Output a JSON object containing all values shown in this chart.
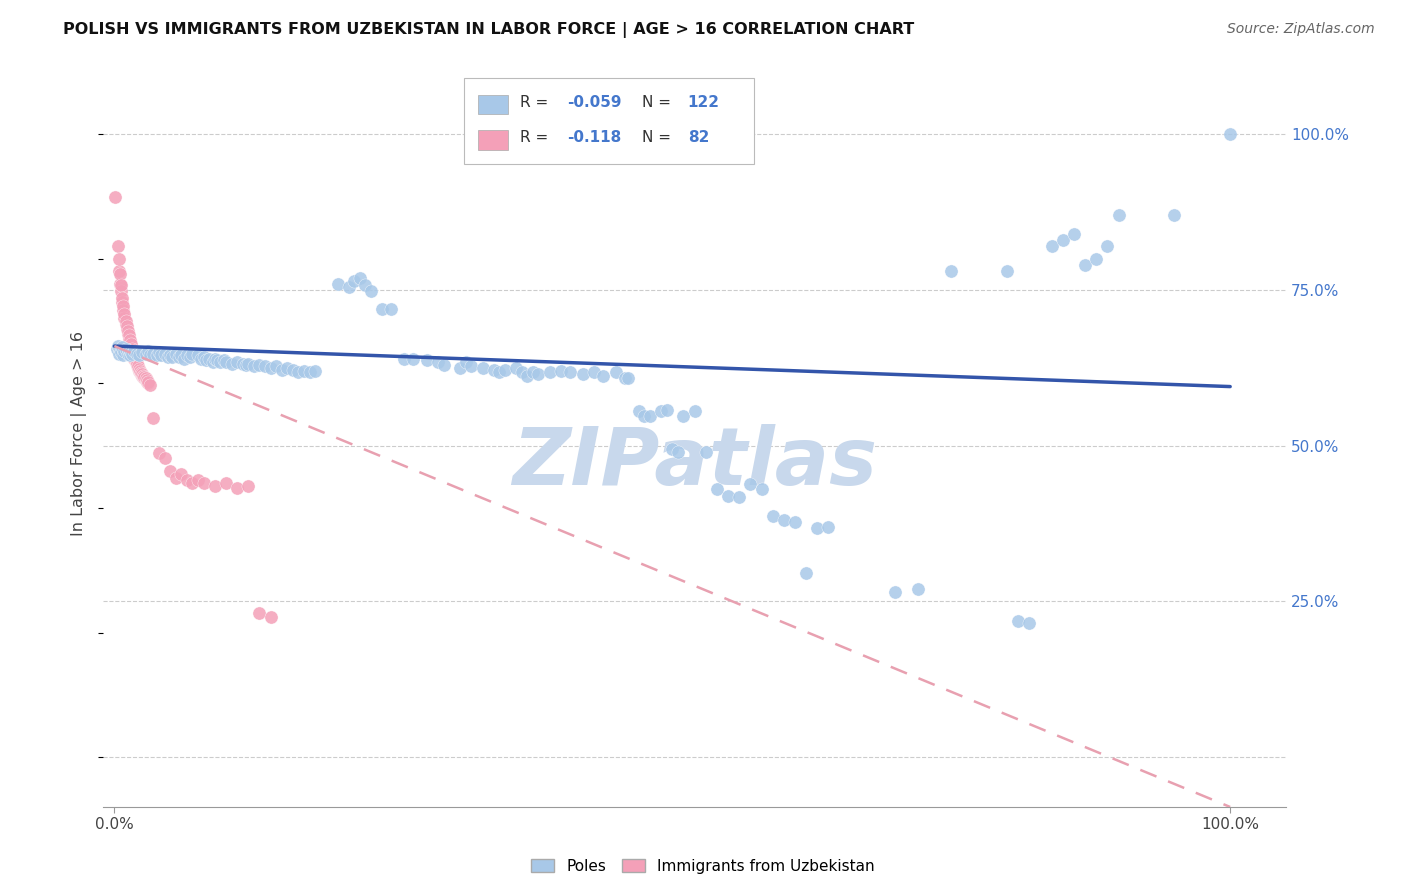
{
  "title": "POLISH VS IMMIGRANTS FROM UZBEKISTAN IN LABOR FORCE | AGE > 16 CORRELATION CHART",
  "source": "Source: ZipAtlas.com",
  "ylabel_label": "In Labor Force | Age > 16",
  "right_yticks": [
    "100.0%",
    "75.0%",
    "50.0%",
    "25.0%"
  ],
  "right_ytick_vals": [
    1.0,
    0.75,
    0.5,
    0.25
  ],
  "blue_color": "#A8C8E8",
  "pink_color": "#F4A0B8",
  "blue_line_color": "#3355AA",
  "pink_line_color": "#E8A0B0",
  "watermark": "ZIPatlas",
  "watermark_color": "#C8D8EC",
  "blue_scatter": [
    [
      0.002,
      0.655
    ],
    [
      0.003,
      0.66
    ],
    [
      0.004,
      0.648
    ],
    [
      0.005,
      0.655
    ],
    [
      0.006,
      0.65
    ],
    [
      0.007,
      0.658
    ],
    [
      0.008,
      0.645
    ],
    [
      0.009,
      0.652
    ],
    [
      0.01,
      0.655
    ],
    [
      0.012,
      0.648
    ],
    [
      0.013,
      0.652
    ],
    [
      0.014,
      0.645
    ],
    [
      0.015,
      0.65
    ],
    [
      0.016,
      0.648
    ],
    [
      0.018,
      0.652
    ],
    [
      0.02,
      0.648
    ],
    [
      0.022,
      0.645
    ],
    [
      0.025,
      0.65
    ],
    [
      0.028,
      0.648
    ],
    [
      0.03,
      0.652
    ],
    [
      0.032,
      0.645
    ],
    [
      0.035,
      0.648
    ],
    [
      0.038,
      0.645
    ],
    [
      0.04,
      0.65
    ],
    [
      0.042,
      0.645
    ],
    [
      0.045,
      0.648
    ],
    [
      0.048,
      0.642
    ],
    [
      0.05,
      0.645
    ],
    [
      0.052,
      0.642
    ],
    [
      0.055,
      0.648
    ],
    [
      0.058,
      0.642
    ],
    [
      0.06,
      0.645
    ],
    [
      0.062,
      0.64
    ],
    [
      0.065,
      0.645
    ],
    [
      0.068,
      0.642
    ],
    [
      0.07,
      0.648
    ],
    [
      0.075,
      0.645
    ],
    [
      0.078,
      0.64
    ],
    [
      0.08,
      0.642
    ],
    [
      0.082,
      0.638
    ],
    [
      0.085,
      0.64
    ],
    [
      0.088,
      0.635
    ],
    [
      0.09,
      0.64
    ],
    [
      0.092,
      0.638
    ],
    [
      0.095,
      0.635
    ],
    [
      0.098,
      0.638
    ],
    [
      0.1,
      0.635
    ],
    [
      0.105,
      0.632
    ],
    [
      0.11,
      0.635
    ],
    [
      0.115,
      0.632
    ],
    [
      0.118,
      0.63
    ],
    [
      0.12,
      0.632
    ],
    [
      0.125,
      0.628
    ],
    [
      0.13,
      0.63
    ],
    [
      0.135,
      0.628
    ],
    [
      0.14,
      0.625
    ],
    [
      0.145,
      0.628
    ],
    [
      0.15,
      0.622
    ],
    [
      0.155,
      0.625
    ],
    [
      0.16,
      0.622
    ],
    [
      0.165,
      0.618
    ],
    [
      0.17,
      0.62
    ],
    [
      0.175,
      0.618
    ],
    [
      0.18,
      0.62
    ],
    [
      0.2,
      0.76
    ],
    [
      0.21,
      0.755
    ],
    [
      0.215,
      0.765
    ],
    [
      0.22,
      0.77
    ],
    [
      0.225,
      0.758
    ],
    [
      0.23,
      0.748
    ],
    [
      0.24,
      0.72
    ],
    [
      0.248,
      0.72
    ],
    [
      0.26,
      0.64
    ],
    [
      0.268,
      0.64
    ],
    [
      0.28,
      0.638
    ],
    [
      0.29,
      0.635
    ],
    [
      0.295,
      0.63
    ],
    [
      0.31,
      0.625
    ],
    [
      0.315,
      0.635
    ],
    [
      0.32,
      0.628
    ],
    [
      0.33,
      0.625
    ],
    [
      0.34,
      0.622
    ],
    [
      0.345,
      0.618
    ],
    [
      0.35,
      0.622
    ],
    [
      0.36,
      0.625
    ],
    [
      0.365,
      0.618
    ],
    [
      0.37,
      0.612
    ],
    [
      0.375,
      0.618
    ],
    [
      0.38,
      0.615
    ],
    [
      0.39,
      0.618
    ],
    [
      0.4,
      0.62
    ],
    [
      0.408,
      0.618
    ],
    [
      0.42,
      0.615
    ],
    [
      0.43,
      0.618
    ],
    [
      0.438,
      0.612
    ],
    [
      0.45,
      0.618
    ],
    [
      0.458,
      0.608
    ],
    [
      0.46,
      0.608
    ],
    [
      0.47,
      0.555
    ],
    [
      0.475,
      0.548
    ],
    [
      0.48,
      0.548
    ],
    [
      0.49,
      0.555
    ],
    [
      0.495,
      0.558
    ],
    [
      0.5,
      0.495
    ],
    [
      0.505,
      0.49
    ],
    [
      0.51,
      0.548
    ],
    [
      0.52,
      0.555
    ],
    [
      0.53,
      0.49
    ],
    [
      0.54,
      0.43
    ],
    [
      0.55,
      0.42
    ],
    [
      0.56,
      0.418
    ],
    [
      0.57,
      0.438
    ],
    [
      0.58,
      0.43
    ],
    [
      0.59,
      0.388
    ],
    [
      0.6,
      0.38
    ],
    [
      0.61,
      0.378
    ],
    [
      0.62,
      0.295
    ],
    [
      0.63,
      0.368
    ],
    [
      0.64,
      0.37
    ],
    [
      0.7,
      0.265
    ],
    [
      0.72,
      0.27
    ],
    [
      0.75,
      0.78
    ],
    [
      0.8,
      0.78
    ],
    [
      0.81,
      0.218
    ],
    [
      0.82,
      0.215
    ],
    [
      0.84,
      0.82
    ],
    [
      0.85,
      0.83
    ],
    [
      0.86,
      0.84
    ],
    [
      0.87,
      0.79
    ],
    [
      0.88,
      0.8
    ],
    [
      0.89,
      0.82
    ],
    [
      0.9,
      0.87
    ],
    [
      0.95,
      0.87
    ],
    [
      1.0,
      1.0
    ]
  ],
  "pink_scatter": [
    [
      0.001,
      0.9
    ],
    [
      0.003,
      0.82
    ],
    [
      0.004,
      0.78
    ],
    [
      0.004,
      0.8
    ],
    [
      0.005,
      0.76
    ],
    [
      0.005,
      0.775
    ],
    [
      0.006,
      0.748
    ],
    [
      0.006,
      0.758
    ],
    [
      0.007,
      0.73
    ],
    [
      0.007,
      0.738
    ],
    [
      0.008,
      0.718
    ],
    [
      0.008,
      0.725
    ],
    [
      0.009,
      0.705
    ],
    [
      0.009,
      0.712
    ],
    [
      0.01,
      0.695
    ],
    [
      0.01,
      0.7
    ],
    [
      0.011,
      0.688
    ],
    [
      0.011,
      0.692
    ],
    [
      0.012,
      0.68
    ],
    [
      0.012,
      0.685
    ],
    [
      0.013,
      0.672
    ],
    [
      0.013,
      0.678
    ],
    [
      0.014,
      0.665
    ],
    [
      0.014,
      0.67
    ],
    [
      0.015,
      0.658
    ],
    [
      0.015,
      0.663
    ],
    [
      0.016,
      0.652
    ],
    [
      0.016,
      0.656
    ],
    [
      0.017,
      0.645
    ],
    [
      0.017,
      0.65
    ],
    [
      0.018,
      0.64
    ],
    [
      0.018,
      0.644
    ],
    [
      0.019,
      0.635
    ],
    [
      0.019,
      0.638
    ],
    [
      0.02,
      0.63
    ],
    [
      0.02,
      0.633
    ],
    [
      0.021,
      0.625
    ],
    [
      0.021,
      0.628
    ],
    [
      0.022,
      0.62
    ],
    [
      0.022,
      0.623
    ],
    [
      0.023,
      0.618
    ],
    [
      0.023,
      0.62
    ],
    [
      0.024,
      0.615
    ],
    [
      0.024,
      0.617
    ],
    [
      0.025,
      0.612
    ],
    [
      0.025,
      0.615
    ],
    [
      0.026,
      0.61
    ],
    [
      0.026,
      0.612
    ],
    [
      0.027,
      0.608
    ],
    [
      0.027,
      0.61
    ],
    [
      0.028,
      0.605
    ],
    [
      0.028,
      0.608
    ],
    [
      0.029,
      0.602
    ],
    [
      0.029,
      0.605
    ],
    [
      0.03,
      0.6
    ],
    [
      0.03,
      0.603
    ],
    [
      0.032,
      0.598
    ],
    [
      0.035,
      0.545
    ],
    [
      0.04,
      0.488
    ],
    [
      0.045,
      0.48
    ],
    [
      0.05,
      0.46
    ],
    [
      0.055,
      0.448
    ],
    [
      0.06,
      0.455
    ],
    [
      0.065,
      0.445
    ],
    [
      0.07,
      0.44
    ],
    [
      0.075,
      0.445
    ],
    [
      0.08,
      0.44
    ],
    [
      0.09,
      0.435
    ],
    [
      0.1,
      0.44
    ],
    [
      0.11,
      0.432
    ],
    [
      0.12,
      0.435
    ],
    [
      0.13,
      0.232
    ],
    [
      0.14,
      0.225
    ]
  ],
  "blue_trend_x": [
    0.0,
    1.0
  ],
  "blue_trend_y": [
    0.66,
    0.595
  ],
  "pink_trend_x": [
    0.0,
    1.0
  ],
  "pink_trend_y": [
    0.66,
    -0.08
  ],
  "xlim": [
    -0.01,
    1.05
  ],
  "ylim": [
    -0.08,
    1.12
  ],
  "ytick_positions": [
    0.0,
    0.25,
    0.5,
    0.75,
    1.0
  ]
}
